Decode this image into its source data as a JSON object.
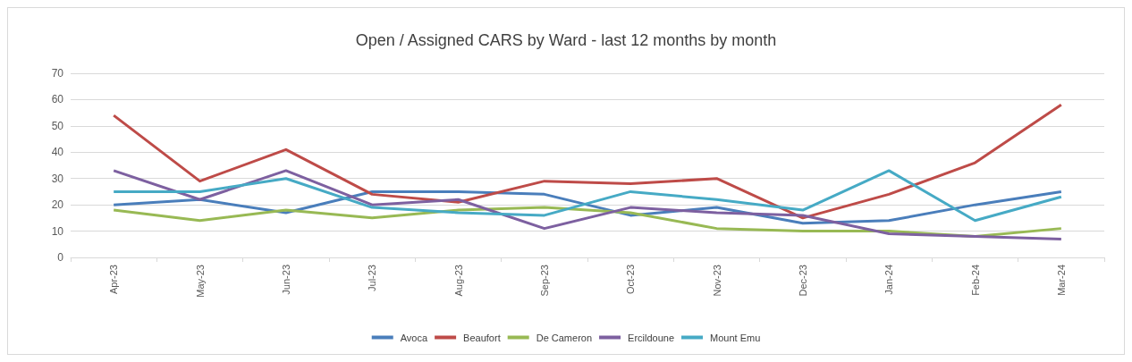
{
  "chart_data": {
    "type": "line",
    "title": "Open / Assigned CARS by Ward - last 12 months by month",
    "categories": [
      "Apr-23",
      "May-23",
      "Jun-23",
      "Jul-23",
      "Aug-23",
      "Sep-23",
      "Oct-23",
      "Nov-23",
      "Dec-23",
      "Jan-24",
      "Feb-24",
      "Mar-24"
    ],
    "series": [
      {
        "name": "Avoca",
        "color": "#4a7ebb",
        "values": [
          20,
          22,
          17,
          25,
          25,
          24,
          16,
          19,
          13,
          14,
          20,
          25
        ]
      },
      {
        "name": "Beaufort",
        "color": "#be4b48",
        "values": [
          54,
          29,
          41,
          24,
          21,
          29,
          28,
          30,
          15,
          24,
          36,
          58
        ]
      },
      {
        "name": "De Cameron",
        "color": "#98b954",
        "values": [
          18,
          14,
          18,
          15,
          18,
          19,
          17,
          11,
          10,
          10,
          8,
          11
        ]
      },
      {
        "name": "Ercildoune",
        "color": "#7d60a0",
        "values": [
          33,
          22,
          33,
          20,
          22,
          11,
          19,
          17,
          16,
          9,
          8,
          7
        ]
      },
      {
        "name": "Mount Emu",
        "color": "#46aac5",
        "values": [
          25,
          25,
          30,
          19,
          17,
          16,
          25,
          22,
          18,
          33,
          14,
          23
        ]
      }
    ],
    "ylim": [
      0,
      70
    ],
    "yticks": [
      0,
      10,
      20,
      30,
      40,
      50,
      60,
      70
    ],
    "grid": "y",
    "legend": "bottom",
    "marker": "none",
    "line_style": "solid"
  }
}
